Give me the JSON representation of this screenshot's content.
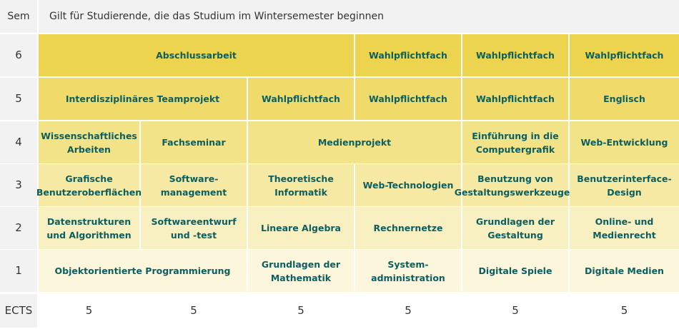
{
  "header": {
    "sem_label": "Sem",
    "title": "Gilt für Studierende, die das Studium im Wintersemester beginnen"
  },
  "rows": [
    {
      "sem": "6",
      "cells": [
        {
          "text": "Abschlussarbeit",
          "span": 3
        },
        {
          "text": "Wahlpflichtfach",
          "span": 1
        },
        {
          "text": "Wahlpflichtfach",
          "span": 1
        },
        {
          "text": "Wahlpflichtfach",
          "span": 1
        }
      ]
    },
    {
      "sem": "5",
      "cells": [
        {
          "text": "Interdisziplinäres Teamprojekt",
          "span": 2
        },
        {
          "text": "Wahlpflichtfach",
          "span": 1
        },
        {
          "text": "Wahlpflichtfach",
          "span": 1
        },
        {
          "text": "Wahlpflichtfach",
          "span": 1
        },
        {
          "text": "Englisch",
          "span": 1
        }
      ]
    },
    {
      "sem": "4",
      "cells": [
        {
          "text": "Wissenschaftliches Arbeiten",
          "span": 1
        },
        {
          "text": "Fachseminar",
          "span": 1
        },
        {
          "text": "Medienprojekt",
          "span": 2
        },
        {
          "text": "Einführung in die Computergrafik",
          "span": 1
        },
        {
          "text": "Web-Entwicklung",
          "span": 1
        }
      ]
    },
    {
      "sem": "3",
      "cells": [
        {
          "text": "Grafische Benutzeroberflächen",
          "span": 1
        },
        {
          "text": "Software-management",
          "span": 1
        },
        {
          "text": "Theoretische Informatik",
          "span": 1
        },
        {
          "text": "Web-Technologien",
          "span": 1
        },
        {
          "text": "Benutzung von Gestaltungswerkzeugen",
          "span": 1
        },
        {
          "text": "Benutzerinterface-Design",
          "span": 1
        }
      ]
    },
    {
      "sem": "2",
      "cells": [
        {
          "text": "Datenstrukturen und Algorithmen",
          "span": 1
        },
        {
          "text": "Softwareentwurf und -test",
          "span": 1
        },
        {
          "text": "Lineare Algebra",
          "span": 1
        },
        {
          "text": "Rechnernetze",
          "span": 1
        },
        {
          "text": "Grundlagen der Gestaltung",
          "span": 1
        },
        {
          "text": "Online- und Medienrecht",
          "span": 1
        }
      ]
    },
    {
      "sem": "1",
      "cells": [
        {
          "text": "Objektorientierte Programmierung",
          "span": 2
        },
        {
          "text": "Grundlagen der Mathematik",
          "span": 1
        },
        {
          "text": "System-administration",
          "span": 1
        },
        {
          "text": "Digitale Spiele",
          "span": 1
        },
        {
          "text": "Digitale Medien",
          "span": 1
        }
      ]
    }
  ],
  "ects": {
    "label": "ECTS",
    "values": [
      "5",
      "5",
      "5",
      "5",
      "5",
      "5"
    ]
  }
}
